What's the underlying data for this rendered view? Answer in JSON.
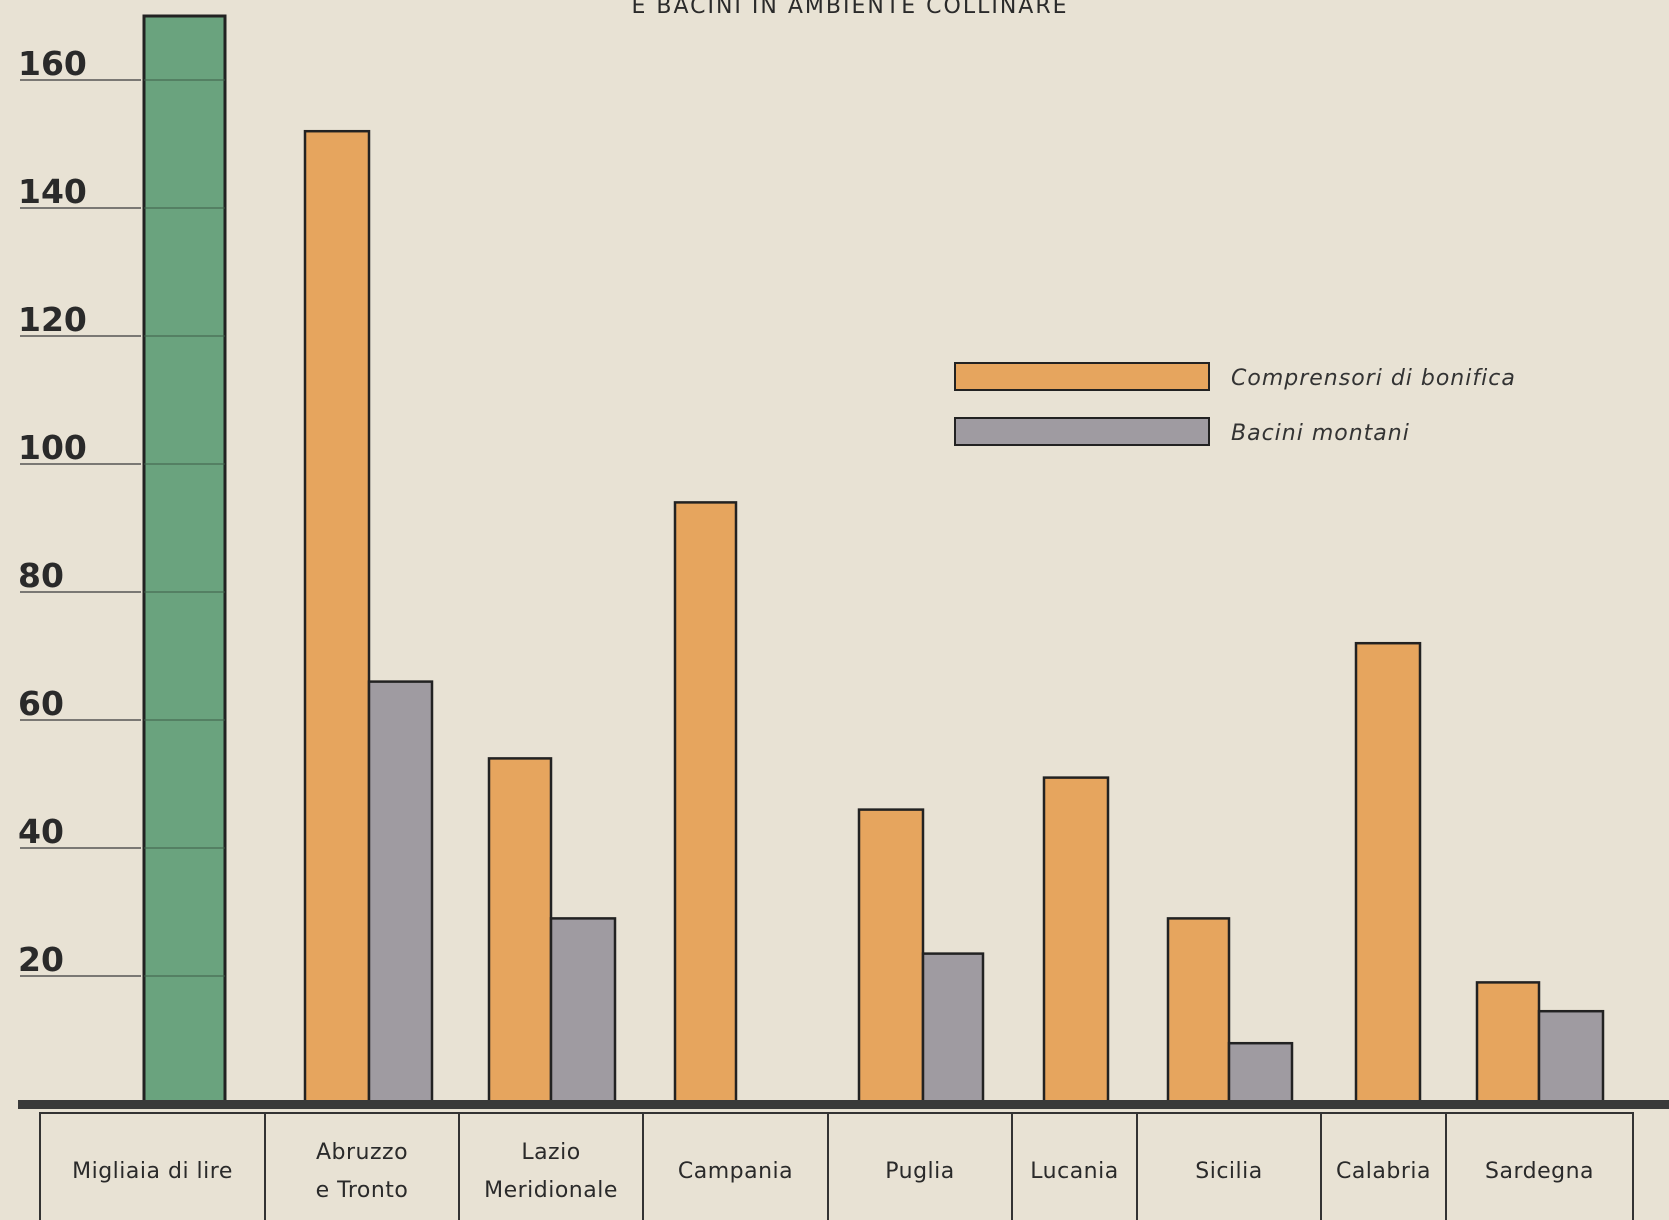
{
  "chart_data": {
    "type": "bar",
    "title": "E BACINI IN AMBIENTE COLLINARE",
    "ylim": [
      0,
      170
    ],
    "yticks": [
      20,
      40,
      60,
      80,
      100,
      120,
      140,
      160
    ],
    "scale_label": [
      "Migliaia di lire"
    ],
    "colors": {
      "scale": "#6aa37e",
      "comprensori": "#e6a55e",
      "bacini": "#9f9ba1"
    },
    "scale_bar": {
      "value": 170
    },
    "categories": [
      [
        "Abruzzo",
        "e Tronto"
      ],
      [
        "Lazio",
        "Meridionale"
      ],
      [
        "Campania"
      ],
      [
        "Puglia"
      ],
      [
        "Lucania"
      ],
      [
        "Sicilia"
      ],
      [
        "Calabria"
      ],
      [
        "Sardegna"
      ]
    ],
    "series": [
      {
        "name": "Comprensori di bonifica",
        "values": [
          152,
          54,
          94,
          46,
          51,
          29,
          72,
          19
        ]
      },
      {
        "name": "Bacini montani",
        "values": [
          66,
          29,
          null,
          23.5,
          null,
          9.5,
          null,
          14.5
        ]
      }
    ],
    "legend_position": "top-right"
  }
}
